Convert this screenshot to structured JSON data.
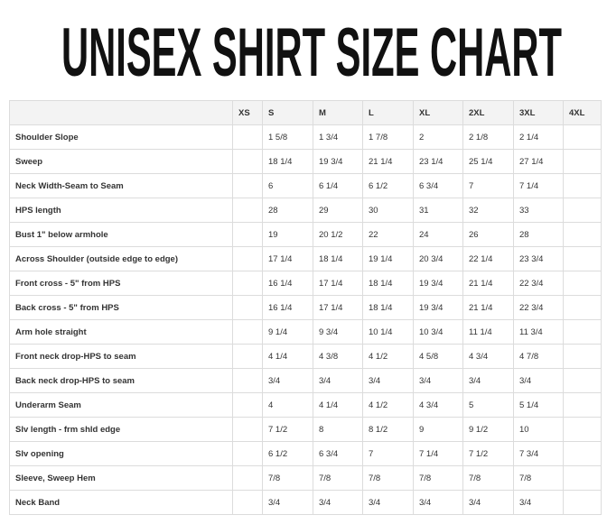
{
  "title": "UNISEX SHIRT SIZE CHART",
  "table": {
    "headers": [
      "",
      "XS",
      "S",
      "M",
      "L",
      "XL",
      "2XL",
      "3XL",
      "4XL"
    ],
    "rows": [
      [
        "Shoulder Slope",
        "",
        "1 5/8",
        "1 3/4",
        "1 7/8",
        "2",
        "2 1/8",
        "2 1/4",
        ""
      ],
      [
        "Sweep",
        "",
        "18 1/4",
        "19 3/4",
        "21 1/4",
        "23 1/4",
        "25 1/4",
        "27 1/4",
        ""
      ],
      [
        "Neck Width-Seam to Seam",
        "",
        "6",
        "6 1/4",
        "6 1/2",
        "6 3/4",
        "7",
        "7 1/4",
        ""
      ],
      [
        "HPS length",
        "",
        "28",
        "29",
        "30",
        "31",
        "32",
        "33",
        ""
      ],
      [
        "Bust 1\" below armhole",
        "",
        "19",
        "20 1/2",
        "22",
        "24",
        "26",
        "28",
        ""
      ],
      [
        "Across Shoulder (outside edge to edge)",
        "",
        "17 1/4",
        "18 1/4",
        "19 1/4",
        "20 3/4",
        "22 1/4",
        "23 3/4",
        ""
      ],
      [
        "Front cross - 5\" from HPS",
        "",
        "16 1/4",
        "17 1/4",
        "18 1/4",
        "19 3/4",
        "21 1/4",
        "22 3/4",
        ""
      ],
      [
        "Back cross - 5\" from HPS",
        "",
        "16 1/4",
        "17 1/4",
        "18 1/4",
        "19 3/4",
        "21 1/4",
        "22 3/4",
        ""
      ],
      [
        "Arm hole straight",
        "",
        "9 1/4",
        "9 3/4",
        "10 1/4",
        "10 3/4",
        "11 1/4",
        "11 3/4",
        ""
      ],
      [
        "Front neck drop-HPS to seam",
        "",
        "4 1/4",
        "4 3/8",
        "4 1/2",
        "4 5/8",
        "4 3/4",
        "4 7/8",
        ""
      ],
      [
        "Back neck drop-HPS to seam",
        "",
        "3/4",
        "3/4",
        "3/4",
        "3/4",
        "3/4",
        "3/4",
        ""
      ],
      [
        "Underarm Seam",
        "",
        "4",
        "4 1/4",
        "4 1/2",
        "4 3/4",
        "5",
        "5 1/4",
        ""
      ],
      [
        "Slv length - frm shld edge",
        "",
        "7 1/2",
        "8",
        "8 1/2",
        "9",
        "9 1/2",
        "10",
        ""
      ],
      [
        "Slv opening",
        "",
        "6 1/2",
        "6 3/4",
        "7",
        "7 1/4",
        "7 1/2",
        "7 3/4",
        ""
      ],
      [
        "Sleeve, Sweep Hem",
        "",
        "7/8",
        "7/8",
        "7/8",
        "7/8",
        "7/8",
        "7/8",
        ""
      ],
      [
        "Neck Band",
        "",
        "3/4",
        "3/4",
        "3/4",
        "3/4",
        "3/4",
        "3/4",
        ""
      ]
    ]
  }
}
